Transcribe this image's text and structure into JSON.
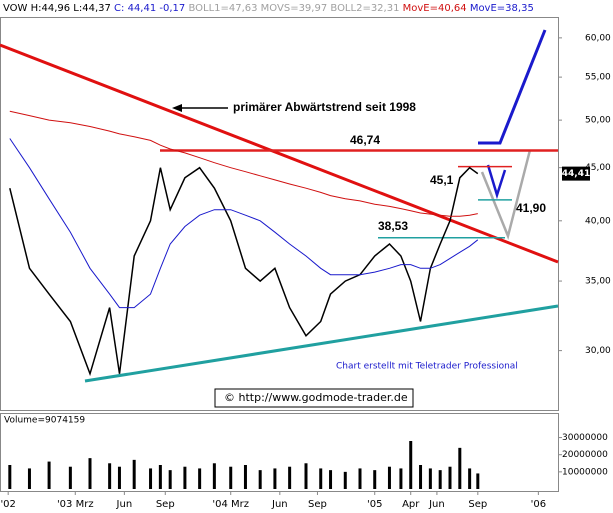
{
  "chart_data": [
    {
      "type": "line",
      "header": [
        {
          "text": "VOW H:44,96 L:44,37 ",
          "color": "#000000"
        },
        {
          "text": "C: 44,41 -0,17 ",
          "color": "#1a1acc"
        },
        {
          "text": "BOLL1=47,63 MOVS=39,97 BOLL2=32,31 ",
          "color": "#a0a0a0"
        },
        {
          "text": "MovE=40,64 ",
          "color": "#d01010"
        },
        {
          "text": "MovE=38,35",
          "color": "#1a1acc"
        }
      ],
      "log_scale": true,
      "x": [
        2002.77,
        2002.89,
        2003.01,
        2003.14,
        2003.26,
        2003.38,
        2003.44,
        2003.53,
        2003.63,
        2003.69,
        2003.75,
        2003.84,
        2003.93,
        2004.02,
        2004.12,
        2004.21,
        2004.3,
        2004.39,
        2004.48,
        2004.58,
        2004.67,
        2004.73,
        2004.82,
        2004.91,
        2005.0,
        2005.09,
        2005.16,
        2005.22,
        2005.28,
        2005.34,
        2005.4,
        2005.46,
        2005.52,
        2005.58,
        2005.63
      ],
      "series": [
        {
          "color": "#000000",
          "width": 1.5,
          "values": [
            43,
            36,
            34,
            32,
            28.5,
            33,
            28.5,
            37,
            40,
            45,
            41,
            44,
            45,
            43,
            40,
            36,
            35,
            36,
            33,
            31,
            32,
            34,
            35,
            35.5,
            37,
            38,
            37,
            35,
            32,
            36,
            38,
            40,
            44,
            45,
            44.41
          ]
        },
        {
          "color": "#d01010",
          "width": 1,
          "values": [
            51,
            50.5,
            50,
            49.7,
            49.3,
            48.8,
            48.5,
            48.2,
            47.8,
            47.3,
            46.9,
            46.5,
            46,
            45.5,
            45,
            44.6,
            44.2,
            43.8,
            43.4,
            43,
            42.6,
            42.3,
            42,
            41.8,
            41.5,
            41.3,
            41.1,
            40.9,
            40.7,
            40.6,
            40.5,
            40.4,
            40.4,
            40.5,
            40.64
          ]
        },
        {
          "color": "#1a1acc",
          "width": 1,
          "values": [
            48,
            45,
            42,
            39,
            36,
            34,
            33,
            33,
            34,
            36,
            38,
            39.5,
            40.5,
            41,
            41,
            40.5,
            40,
            39,
            38,
            37,
            36,
            35.5,
            35.5,
            35.5,
            35.7,
            36,
            36.3,
            36.3,
            36,
            36,
            36.3,
            36.8,
            37.3,
            37.8,
            38.35
          ]
        }
      ],
      "xlim": [
        2002.71,
        2006.12
      ],
      "xticks": [
        {
          "value": 2002.76,
          "label": "'02"
        },
        {
          "value": 2003.17,
          "label": "'03 Mrz"
        },
        {
          "value": 2003.47,
          "label": "Jun"
        },
        {
          "value": 2003.72,
          "label": "Sep"
        },
        {
          "value": 2004.12,
          "label": "'04 Mrz"
        },
        {
          "value": 2004.42,
          "label": "Jun"
        },
        {
          "value": 2004.65,
          "label": "Sep"
        },
        {
          "value": 2005.0,
          "label": "'05"
        },
        {
          "value": 2005.22,
          "label": "Apr"
        },
        {
          "value": 2005.38,
          "label": "Jun"
        },
        {
          "value": 2005.63,
          "label": "Sep"
        },
        {
          "value": 2006.0,
          "label": "'06"
        }
      ],
      "ylim": [
        26.3,
        62.7
      ],
      "yticks": [
        {
          "value": 30,
          "label": "30,00"
        },
        {
          "value": 35,
          "label": "35,00"
        },
        {
          "value": 40,
          "label": "40,00"
        },
        {
          "value": 45,
          "label": "45,00"
        },
        {
          "value": 50,
          "label": "50,00"
        },
        {
          "value": 55,
          "label": "55,00"
        },
        {
          "value": 60,
          "label": "60,00"
        }
      ],
      "levels": [
        {
          "value": 46.74,
          "label": "46,74",
          "color": "#e02020"
        },
        {
          "value": 45.1,
          "label": "45,1",
          "color": "#e02020"
        },
        {
          "value": 38.53,
          "label": "38,53",
          "color": "#20a0a0"
        },
        {
          "value": 41.9,
          "label": "41,90",
          "color": "#20a0a0"
        }
      ],
      "last": {
        "value": 44.41,
        "label": "44,41"
      },
      "annotations": [
        "primärer Abwärtstrend seit 1998",
        "Chart erstellt mit Teletrader Professional",
        "© http://www.godmode-trader.de"
      ]
    },
    {
      "type": "bar",
      "title": "Volume=9074159",
      "color": "#000000",
      "x": [
        2002.77,
        2002.89,
        2003.01,
        2003.14,
        2003.26,
        2003.38,
        2003.44,
        2003.53,
        2003.63,
        2003.69,
        2003.75,
        2003.84,
        2003.93,
        2004.02,
        2004.12,
        2004.21,
        2004.3,
        2004.39,
        2004.48,
        2004.58,
        2004.67,
        2004.73,
        2004.82,
        2004.91,
        2005.0,
        2005.09,
        2005.16,
        2005.22,
        2005.28,
        2005.34,
        2005.4,
        2005.46,
        2005.52,
        2005.58,
        2005.63
      ],
      "values": [
        14000000,
        12000000,
        16000000,
        13000000,
        18000000,
        15000000,
        13000000,
        17000000,
        12000000,
        14000000,
        11000000,
        13000000,
        12000000,
        15000000,
        13000000,
        14000000,
        11000000,
        12000000,
        13000000,
        15000000,
        12000000,
        11000000,
        10000000,
        12000000,
        11000000,
        13000000,
        12000000,
        28000000,
        14000000,
        12000000,
        11000000,
        13000000,
        24000000,
        12000000,
        9074159
      ],
      "xlim": [
        2002.71,
        2006.12
      ],
      "ylim": [
        0,
        42000000
      ],
      "yticks": [
        10000000,
        20000000,
        30000000
      ]
    }
  ]
}
